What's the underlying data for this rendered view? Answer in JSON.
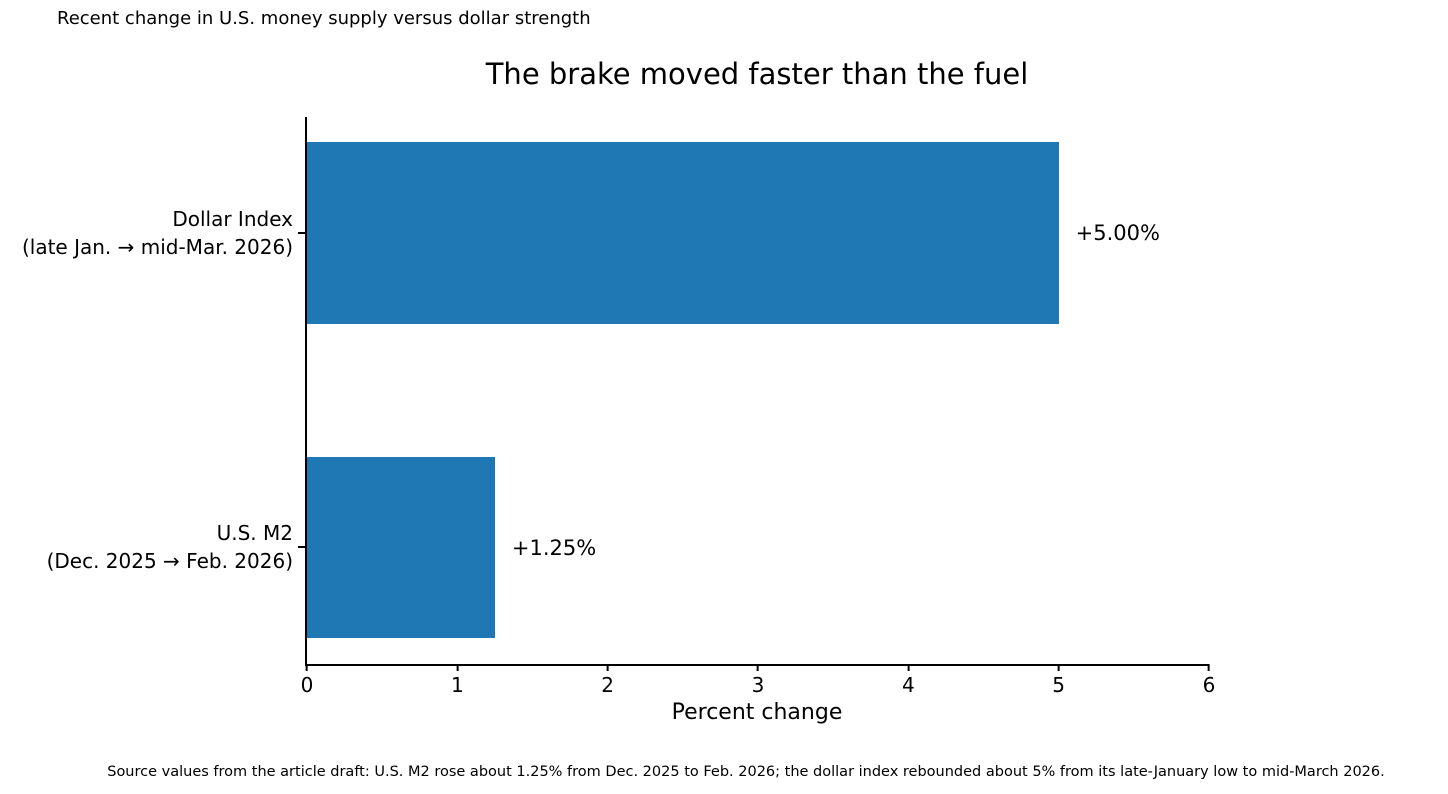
{
  "figure": {
    "top_note": "Recent change in U.S. money supply versus dollar strength",
    "source_note": "Source values from the article draft: U.S. M2 rose about 1.25% from Dec. 2025 to Feb. 2026; the dollar index rebounded about 5% from its late-January low to mid-March 2026."
  },
  "chart_data": {
    "type": "bar",
    "orientation": "horizontal",
    "title": "The brake moved faster than the fuel",
    "xlabel": "Percent change",
    "ylabel": "",
    "xlim": [
      0,
      6
    ],
    "xticks": [
      0,
      1,
      2,
      3,
      4,
      5,
      6
    ],
    "grid": false,
    "legend": null,
    "bar_color": "#1f77b4",
    "categories": [
      "Dollar Index (late Jan. → mid-Mar. 2026)",
      "U.S. M2 (Dec. 2025 → Feb. 2026)"
    ],
    "values": [
      5.0,
      1.25
    ],
    "bars": [
      {
        "label_line1": "Dollar Index",
        "label_line2": "(late Jan. → mid-Mar. 2026)",
        "value": 5.0,
        "value_label": "+5.00%"
      },
      {
        "label_line1": "U.S. M2",
        "label_line2": "(Dec. 2025 → Feb. 2026)",
        "value": 1.25,
        "value_label": "+1.25%"
      }
    ]
  }
}
